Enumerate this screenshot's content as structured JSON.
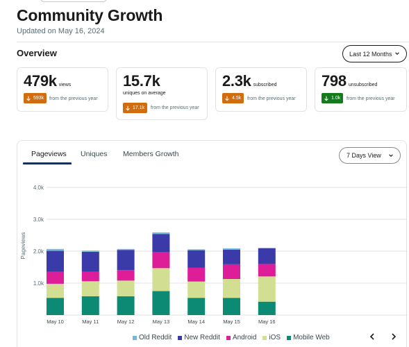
{
  "page": {
    "title": "Community Growth",
    "updated": "Updated on May 16, 2024",
    "overview_label": "Overview",
    "range_select": "Last 12 Months"
  },
  "cards": [
    {
      "value": "479k",
      "unit": "views",
      "change": "593k",
      "direction": "down",
      "change_color": "#d26c0c",
      "note": "from the previous year"
    },
    {
      "value": "15.7k",
      "unit": "uniques on average",
      "change": "17.1k",
      "direction": "down",
      "change_color": "#d26c0c",
      "note": "from the previous year"
    },
    {
      "value": "2.3k",
      "unit": "subscribed",
      "change": "4.5k",
      "direction": "down",
      "change_color": "#d26c0c",
      "note": "from the previous year"
    },
    {
      "value": "798",
      "unit": "unsubscribed",
      "change": "1.0k",
      "direction": "down",
      "change_color": "#137b1e",
      "note": "from the previous year"
    }
  ],
  "tabs": [
    "Pageviews",
    "Uniques",
    "Members Growth"
  ],
  "active_tab": "Pageviews",
  "view_select": "7 Days View",
  "chart_data": {
    "type": "bar",
    "stacked": true,
    "categories": [
      "May 10",
      "May 11",
      "May 12",
      "May 13",
      "May 14",
      "May 15",
      "May 16"
    ],
    "ylabel": "Pageviews",
    "yticks": [
      "1.0k",
      "2.0k",
      "3.0k",
      "4.0k"
    ],
    "ylim": [
      0,
      4000
    ],
    "grid": true,
    "legend_position": "bottom",
    "series": [
      {
        "name": "Mobile Web",
        "color": "#0c8a73",
        "values": [
          540,
          590,
          590,
          750,
          540,
          540,
          420
        ]
      },
      {
        "name": "iOS",
        "color": "#d2df92",
        "values": [
          440,
          470,
          490,
          720,
          510,
          590,
          790
        ]
      },
      {
        "name": "Android",
        "color": "#de1e99",
        "values": [
          380,
          300,
          330,
          500,
          430,
          460,
          390
        ]
      },
      {
        "name": "New Reddit",
        "color": "#3a3aa8",
        "values": [
          650,
          620,
          630,
          570,
          550,
          460,
          490
        ]
      },
      {
        "name": "Old Reddit",
        "color": "#72b8d8",
        "values": [
          60,
          40,
          30,
          50,
          30,
          40,
          20
        ]
      }
    ],
    "legend_order": [
      "Old Reddit",
      "New Reddit",
      "Android",
      "iOS",
      "Mobile Web"
    ]
  },
  "icons": {
    "range_chevron": "chevron-down-icon",
    "view_chevron": "chevron-down-icon",
    "change_arrow": "arrow-down-icon",
    "prev": "chevron-left-icon",
    "next": "chevron-right-icon"
  }
}
